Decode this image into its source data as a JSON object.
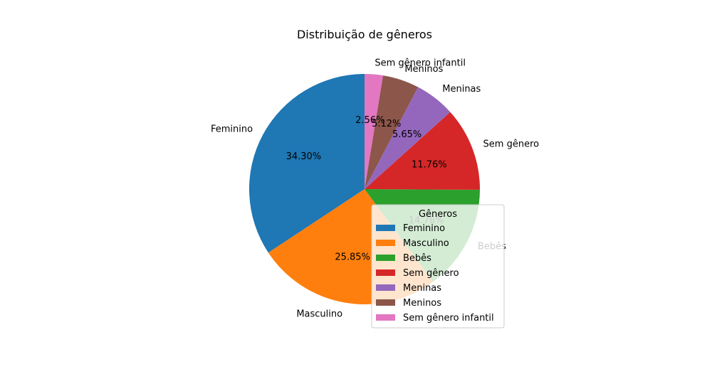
{
  "chart_data": {
    "type": "pie",
    "title": "Distribuição de gêneros",
    "legend_title": "Gêneros",
    "legend_position": "lower-right",
    "start_angle_deg": 90,
    "direction": "counterclockwise",
    "categories": [
      "Feminino",
      "Masculino",
      "Bebês",
      "Sem gênero",
      "Meninas",
      "Meninos",
      "Sem gênero infantil"
    ],
    "values": [
      34.3,
      25.85,
      14.76,
      11.76,
      5.65,
      5.12,
      2.56
    ],
    "labels_pct": [
      "34.30%",
      "25.85%",
      "14.76%",
      "11.76%",
      "5.65%",
      "5.12%",
      "2.56%"
    ],
    "colors": [
      "#1f77b4",
      "#ff7f0e",
      "#2ca02c",
      "#d62728",
      "#9467bd",
      "#8c564b",
      "#e377c2"
    ]
  }
}
